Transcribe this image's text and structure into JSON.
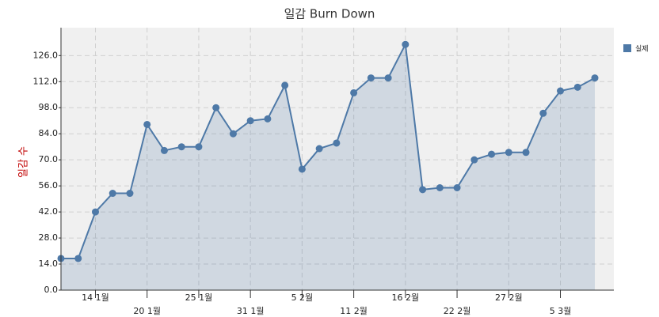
{
  "chart_data": {
    "type": "area",
    "title": "일감 Burn Down",
    "y_label": "일감 수",
    "categories": [
      null,
      null,
      "14 1월",
      null,
      null,
      "20 1월",
      null,
      null,
      "25 1월",
      null,
      null,
      "31 1월",
      null,
      null,
      "5 2월",
      null,
      null,
      "11 2월",
      null,
      null,
      "16 2월",
      null,
      null,
      "22 2월",
      null,
      null,
      "27 2월",
      null,
      null,
      "5 3월",
      null,
      null
    ],
    "series": [
      {
        "name": "실제",
        "color": "#4e79a7",
        "values": [
          17,
          17,
          42,
          52,
          52,
          89,
          75,
          77,
          77,
          98,
          84,
          91,
          92,
          110,
          65,
          76,
          79,
          106,
          114,
          114,
          132,
          54,
          55,
          55,
          70,
          73,
          74,
          74,
          95,
          107,
          109,
          114
        ]
      }
    ],
    "ylim": [
      0,
      141
    ],
    "yticks": [
      {
        "value": 0,
        "label": "0.0"
      },
      {
        "value": 14,
        "label": "14.0"
      },
      {
        "value": 28,
        "label": "28.0"
      },
      {
        "value": 42,
        "label": "42.0"
      },
      {
        "value": 56,
        "label": "56.0"
      },
      {
        "value": 70,
        "label": "70.0"
      },
      {
        "value": 84,
        "label": "84.0"
      },
      {
        "value": 98,
        "label": "98.0"
      },
      {
        "value": 112,
        "label": "112.0"
      },
      {
        "value": 126,
        "label": "126.0"
      }
    ],
    "grid": true
  }
}
